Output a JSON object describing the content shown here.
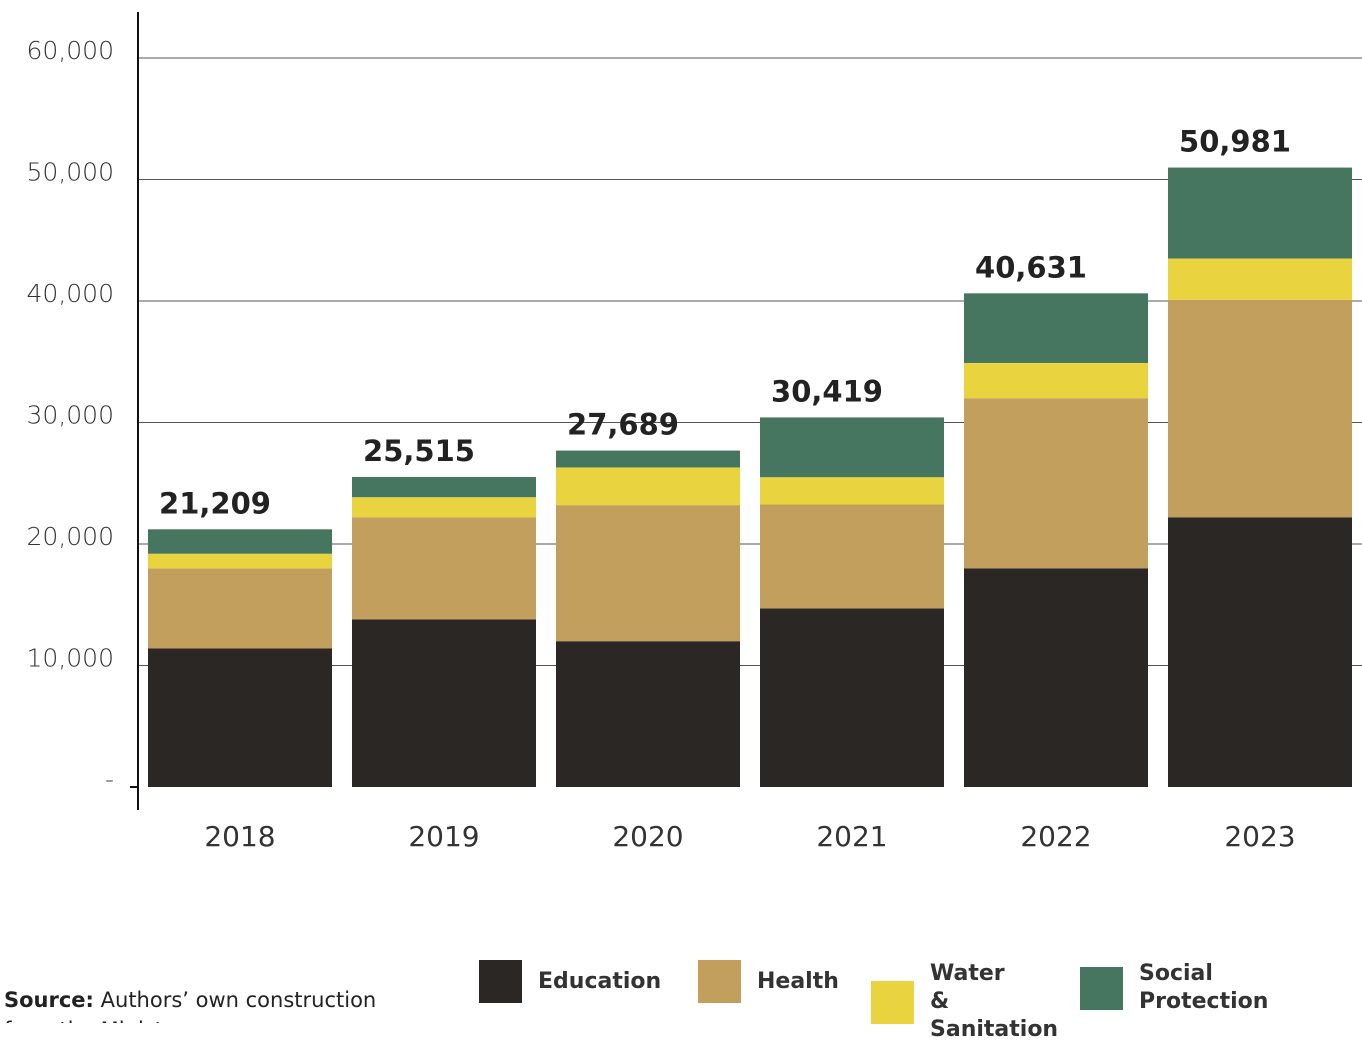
{
  "chart_data": {
    "type": "stacked_bar",
    "categories": [
      "2018",
      "2019",
      "2020",
      "2021",
      "2022",
      "2023"
    ],
    "series": [
      {
        "name": "Education",
        "color": "#2b2724",
        "values": [
          11400,
          13800,
          12000,
          14700,
          18000,
          22200
        ]
      },
      {
        "name": "Health",
        "color": "#c39f5e",
        "values": [
          6600,
          8400,
          11200,
          8550,
          14000,
          17900
        ]
      },
      {
        "name": "Water & Sanitation",
        "color": "#e9d33f",
        "values": [
          1200,
          1650,
          3100,
          2250,
          2900,
          3400
        ]
      },
      {
        "name": "Social Protection",
        "color": "#467560",
        "values": [
          2009,
          1665,
          1389,
          4919,
          5731,
          7481
        ]
      }
    ],
    "totals": {
      "values": [
        21209,
        25515,
        27689,
        30419,
        40631,
        50981
      ],
      "value_labels": [
        "21,209",
        "25,515",
        "27,689",
        "30,419",
        "40,631",
        "50,981"
      ]
    },
    "ylim": [
      0,
      60000
    ],
    "yticks": [
      {
        "value": 0,
        "label": "-"
      },
      {
        "value": 10000,
        "label": "10,000"
      },
      {
        "value": 20000,
        "label": "20,000"
      },
      {
        "value": 30000,
        "label": "30,000"
      },
      {
        "value": 40000,
        "label": "40,000"
      },
      {
        "value": 50000,
        "label": "50,000"
      },
      {
        "value": 60000,
        "label": "60,000"
      }
    ],
    "grid": true,
    "source_label": "Source:",
    "source_text": "Authors’ own construction from the Ministry"
  }
}
